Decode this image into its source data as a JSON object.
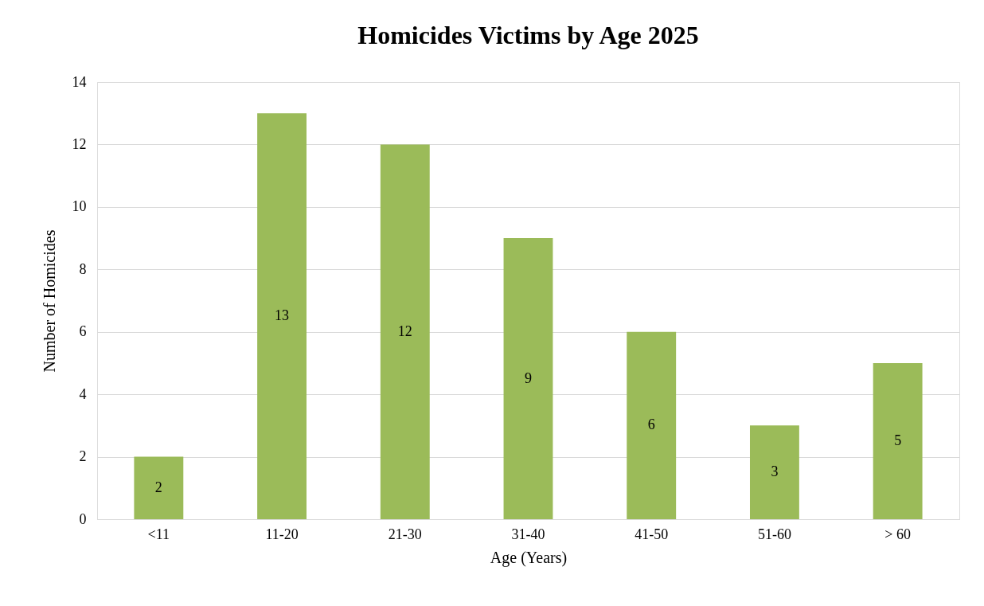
{
  "chart_data": {
    "type": "bar",
    "title": "Homicides Victims by Age 2025",
    "xlabel": "Age (Years)",
    "ylabel": "Number of Homicides",
    "categories": [
      "<11",
      "11-20",
      "21-30",
      "31-40",
      "41-50",
      "51-60",
      "> 60"
    ],
    "values": [
      2,
      13,
      12,
      9,
      6,
      3,
      5
    ],
    "color": "#9bbb59",
    "ylim": [
      0,
      14
    ],
    "yticks": [
      0,
      2,
      4,
      6,
      8,
      10,
      12,
      14
    ],
    "grid": "y",
    "data_labels": true
  }
}
